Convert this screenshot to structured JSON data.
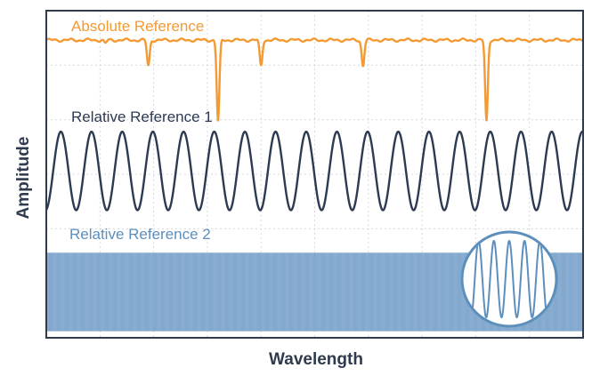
{
  "chart_data": {
    "type": "line",
    "title": "",
    "xlabel": "Wavelength",
    "ylabel": "Amplitude",
    "grid": true,
    "grid_columns": 10,
    "grid_rows": 6,
    "legend": "inline labels",
    "series": [
      {
        "name": "Absolute Reference",
        "color": "#f39a34",
        "kind": "absorption-dips",
        "baseline": 0.91,
        "dips_x": [
          0.11,
          0.19,
          0.32,
          0.4,
          0.59,
          0.82
        ],
        "dips_depth": [
          0.01,
          0.08,
          0.25,
          0.08,
          0.08,
          0.25
        ]
      },
      {
        "name": "Relative Reference 1",
        "color": "#2c3a52",
        "kind": "sinusoid",
        "center": 0.51,
        "amplitude": 0.12,
        "cycles": 17.5,
        "phase": 0.0
      },
      {
        "name": "Relative Reference 2",
        "color": "#5d8fbd",
        "kind": "dense-sinusoid",
        "center": 0.14,
        "amplitude": 0.12,
        "inset_cycles": 5
      }
    ]
  }
}
